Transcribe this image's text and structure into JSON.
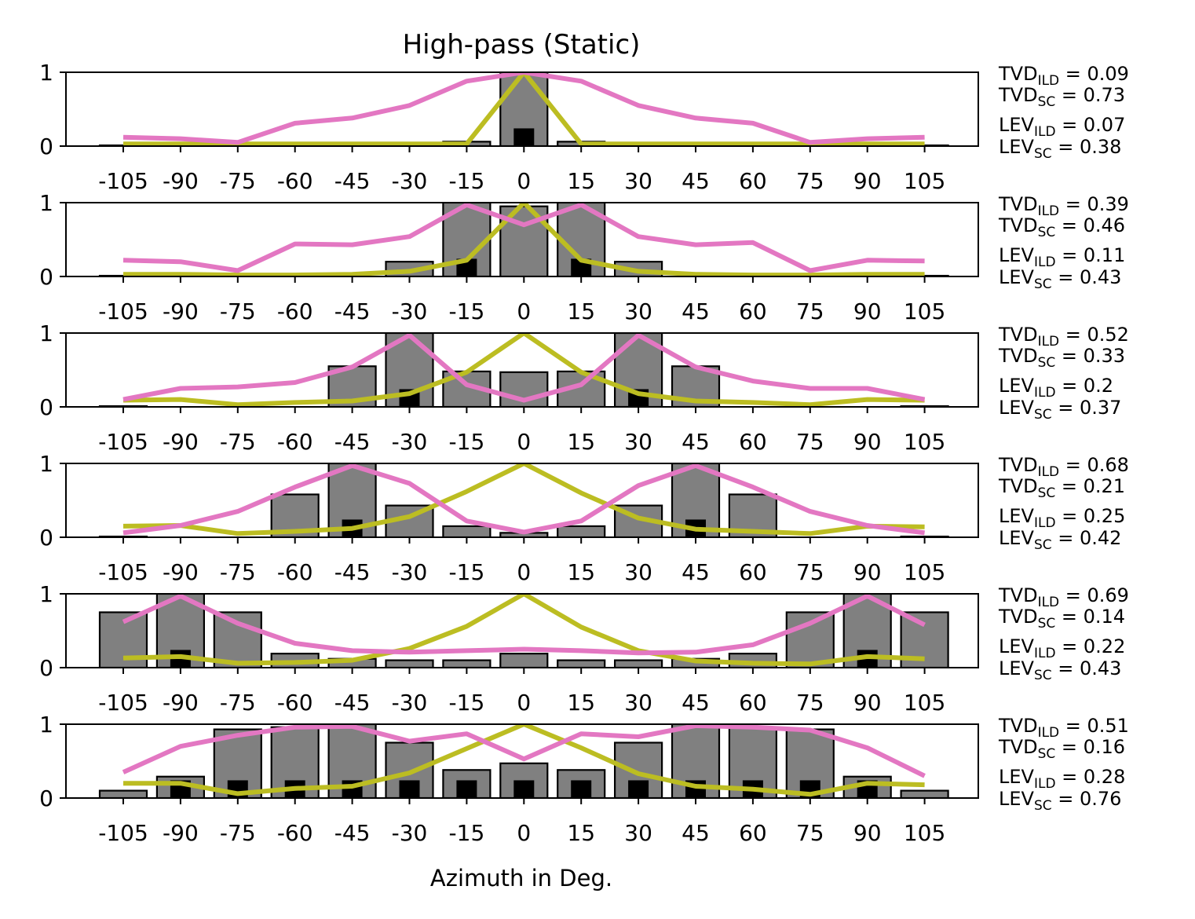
{
  "title": "High-pass (Static)",
  "xlabel": "Azimuth in Deg.",
  "chart_data": [
    {
      "type": "bar",
      "categories": [
        "-105",
        "-90",
        "-75",
        "-60",
        "-45",
        "-30",
        "-15",
        "0",
        "15",
        "30",
        "45",
        "60",
        "75",
        "90",
        "105"
      ],
      "ylim": [
        0,
        1
      ],
      "yticks": [
        "0",
        "1"
      ],
      "bars_gray": [
        0.01,
        0.0,
        0.0,
        0.0,
        0.0,
        0.0,
        0.06,
        1.0,
        0.06,
        0.0,
        0.0,
        0.0,
        0.0,
        0.0,
        0.01
      ],
      "bars_black": [
        0.0,
        0.0,
        0.0,
        0.0,
        0.0,
        0.0,
        0.0,
        0.24,
        0.0,
        0.0,
        0.0,
        0.0,
        0.0,
        0.0,
        0.0
      ],
      "series": [
        {
          "color": "#e377c2",
          "values": [
            0.12,
            0.1,
            0.05,
            0.31,
            0.38,
            0.55,
            0.88,
            1.0,
            0.88,
            0.55,
            0.38,
            0.31,
            0.05,
            0.1,
            0.12
          ]
        },
        {
          "color": "#bcbd22",
          "values": [
            0.03,
            0.03,
            0.03,
            0.03,
            0.03,
            0.03,
            0.03,
            1.0,
            0.03,
            0.03,
            0.03,
            0.03,
            0.03,
            0.03,
            0.03
          ]
        }
      ],
      "metrics": {
        "tvd_ild": "0.09",
        "tvd_sc": "0.73",
        "lev_ild": "0.07",
        "lev_sc": "0.38"
      }
    },
    {
      "type": "bar",
      "categories": [
        "-105",
        "-90",
        "-75",
        "-60",
        "-45",
        "-30",
        "-15",
        "0",
        "15",
        "30",
        "45",
        "60",
        "75",
        "90",
        "105"
      ],
      "ylim": [
        0,
        1
      ],
      "yticks": [
        "0",
        "1"
      ],
      "bars_gray": [
        0.01,
        0.0,
        0.0,
        0.0,
        0.0,
        0.2,
        1.0,
        0.95,
        1.0,
        0.2,
        0.0,
        0.0,
        0.0,
        0.0,
        0.01
      ],
      "bars_black": [
        0.0,
        0.0,
        0.0,
        0.0,
        0.0,
        0.0,
        0.24,
        0.0,
        0.24,
        0.0,
        0.0,
        0.0,
        0.0,
        0.0,
        0.0
      ],
      "series": [
        {
          "color": "#e377c2",
          "values": [
            0.22,
            0.2,
            0.08,
            0.44,
            0.43,
            0.54,
            0.97,
            0.7,
            0.97,
            0.54,
            0.43,
            0.46,
            0.08,
            0.22,
            0.21
          ]
        },
        {
          "color": "#bcbd22",
          "values": [
            0.03,
            0.03,
            0.02,
            0.02,
            0.03,
            0.07,
            0.22,
            1.0,
            0.22,
            0.07,
            0.03,
            0.02,
            0.02,
            0.03,
            0.03
          ]
        }
      ],
      "metrics": {
        "tvd_ild": "0.39",
        "tvd_sc": "0.46",
        "lev_ild": "0.11",
        "lev_sc": "0.43"
      }
    },
    {
      "type": "bar",
      "categories": [
        "-105",
        "-90",
        "-75",
        "-60",
        "-45",
        "-30",
        "-15",
        "0",
        "15",
        "30",
        "45",
        "60",
        "75",
        "90",
        "105"
      ],
      "ylim": [
        0,
        1
      ],
      "yticks": [
        "0",
        "1"
      ],
      "bars_gray": [
        0.01,
        0.0,
        0.0,
        0.0,
        0.55,
        1.0,
        0.48,
        0.47,
        0.48,
        1.0,
        0.55,
        0.0,
        0.0,
        0.0,
        0.01
      ],
      "bars_black": [
        0.0,
        0.0,
        0.0,
        0.0,
        0.0,
        0.24,
        0.0,
        0.0,
        0.0,
        0.24,
        0.0,
        0.0,
        0.0,
        0.0,
        0.0
      ],
      "series": [
        {
          "color": "#e377c2",
          "values": [
            0.1,
            0.25,
            0.27,
            0.33,
            0.54,
            0.97,
            0.3,
            0.09,
            0.3,
            0.97,
            0.54,
            0.35,
            0.25,
            0.25,
            0.1
          ]
        },
        {
          "color": "#bcbd22",
          "values": [
            0.09,
            0.1,
            0.03,
            0.06,
            0.08,
            0.18,
            0.47,
            1.0,
            0.47,
            0.18,
            0.08,
            0.06,
            0.03,
            0.1,
            0.09
          ]
        }
      ],
      "metrics": {
        "tvd_ild": "0.52",
        "tvd_sc": "0.33",
        "lev_ild": "0.2",
        "lev_sc": "0.37"
      }
    },
    {
      "type": "bar",
      "categories": [
        "-105",
        "-90",
        "-75",
        "-60",
        "-45",
        "-30",
        "-15",
        "0",
        "15",
        "30",
        "45",
        "60",
        "75",
        "90",
        "105"
      ],
      "ylim": [
        0,
        1
      ],
      "yticks": [
        "0",
        "1"
      ],
      "bars_gray": [
        0.01,
        0.0,
        0.0,
        0.58,
        1.0,
        0.43,
        0.15,
        0.06,
        0.15,
        0.43,
        1.0,
        0.58,
        0.0,
        0.0,
        0.01
      ],
      "bars_black": [
        0.0,
        0.0,
        0.0,
        0.0,
        0.24,
        0.0,
        0.0,
        0.0,
        0.0,
        0.0,
        0.24,
        0.0,
        0.0,
        0.0,
        0.0
      ],
      "series": [
        {
          "color": "#e377c2",
          "values": [
            0.06,
            0.16,
            0.35,
            0.68,
            0.97,
            0.73,
            0.22,
            0.07,
            0.22,
            0.7,
            0.97,
            0.68,
            0.35,
            0.16,
            0.06
          ]
        },
        {
          "color": "#bcbd22",
          "values": [
            0.15,
            0.16,
            0.05,
            0.08,
            0.12,
            0.28,
            0.62,
            1.0,
            0.6,
            0.26,
            0.11,
            0.08,
            0.05,
            0.15,
            0.14
          ]
        }
      ],
      "metrics": {
        "tvd_ild": "0.68",
        "tvd_sc": "0.21",
        "lev_ild": "0.25",
        "lev_sc": "0.42"
      }
    },
    {
      "type": "bar",
      "categories": [
        "-105",
        "-90",
        "-75",
        "-60",
        "-45",
        "-30",
        "-15",
        "0",
        "15",
        "30",
        "45",
        "60",
        "75",
        "90",
        "105"
      ],
      "ylim": [
        0,
        1
      ],
      "yticks": [
        "0",
        "1"
      ],
      "bars_gray": [
        0.75,
        1.0,
        0.75,
        0.19,
        0.12,
        0.1,
        0.1,
        0.19,
        0.1,
        0.1,
        0.12,
        0.19,
        0.75,
        1.0,
        0.75
      ],
      "bars_black": [
        0.0,
        0.24,
        0.0,
        0.0,
        0.0,
        0.0,
        0.0,
        0.0,
        0.0,
        0.0,
        0.0,
        0.0,
        0.0,
        0.24,
        0.0
      ],
      "series": [
        {
          "color": "#e377c2",
          "values": [
            0.62,
            0.97,
            0.6,
            0.33,
            0.23,
            0.21,
            0.23,
            0.25,
            0.23,
            0.2,
            0.21,
            0.31,
            0.6,
            0.97,
            0.58
          ]
        },
        {
          "color": "#bcbd22",
          "values": [
            0.13,
            0.15,
            0.06,
            0.07,
            0.1,
            0.26,
            0.56,
            1.0,
            0.55,
            0.23,
            0.09,
            0.06,
            0.05,
            0.15,
            0.12
          ]
        }
      ],
      "metrics": {
        "tvd_ild": "0.69",
        "tvd_sc": "0.14",
        "lev_ild": "0.22",
        "lev_sc": "0.43"
      }
    },
    {
      "type": "bar",
      "categories": [
        "-105",
        "-90",
        "-75",
        "-60",
        "-45",
        "-30",
        "-15",
        "0",
        "15",
        "30",
        "45",
        "60",
        "75",
        "90",
        "105"
      ],
      "ylim": [
        0,
        1
      ],
      "yticks": [
        "0",
        "1"
      ],
      "bars_gray": [
        0.1,
        0.29,
        0.93,
        0.96,
        1.0,
        0.75,
        0.38,
        0.47,
        0.38,
        0.75,
        1.0,
        0.96,
        0.93,
        0.29,
        0.1
      ],
      "bars_black": [
        0.0,
        0.24,
        0.24,
        0.24,
        0.24,
        0.24,
        0.24,
        0.24,
        0.24,
        0.24,
        0.24,
        0.24,
        0.24,
        0.24,
        0.0
      ],
      "series": [
        {
          "color": "#e377c2",
          "values": [
            0.35,
            0.7,
            0.85,
            0.96,
            0.97,
            0.77,
            0.87,
            0.53,
            0.87,
            0.83,
            0.98,
            0.96,
            0.92,
            0.68,
            0.3
          ]
        },
        {
          "color": "#bcbd22",
          "values": [
            0.2,
            0.2,
            0.06,
            0.13,
            0.16,
            0.34,
            0.67,
            1.0,
            0.68,
            0.33,
            0.16,
            0.12,
            0.05,
            0.2,
            0.18
          ]
        }
      ],
      "metrics": {
        "tvd_ild": "0.51",
        "tvd_sc": "0.16",
        "lev_ild": "0.28",
        "lev_sc": "0.76"
      }
    }
  ]
}
